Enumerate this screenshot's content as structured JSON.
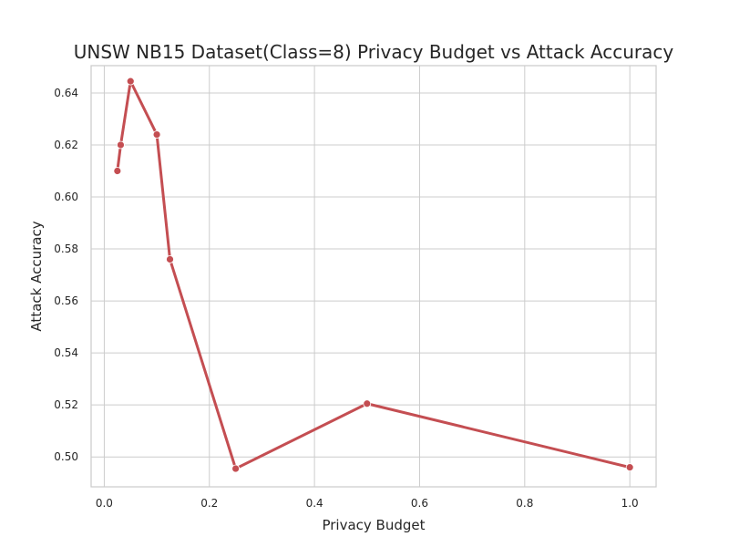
{
  "chart_data": {
    "type": "line",
    "title": "UNSW NB15 Dataset(Class=8) Privacy Budget vs Attack Accuracy",
    "xlabel": "Privacy Budget",
    "ylabel": "Attack Accuracy",
    "xlim": [
      -0.025,
      1.05
    ],
    "ylim": [
      0.4885,
      0.6505
    ],
    "xticks": [
      0.0,
      0.2,
      0.4,
      0.6,
      0.8,
      1.0
    ],
    "xtick_labels": [
      "0.0",
      "0.2",
      "0.4",
      "0.6",
      "0.8",
      "1.0"
    ],
    "yticks": [
      0.5,
      0.52,
      0.54,
      0.56,
      0.58,
      0.6,
      0.62,
      0.64
    ],
    "ytick_labels": [
      "0.50",
      "0.52",
      "0.54",
      "0.56",
      "0.58",
      "0.60",
      "0.62",
      "0.64"
    ],
    "grid": true,
    "series": [
      {
        "color": "#c44e52",
        "x": [
          0.025,
          0.03125,
          0.05,
          0.1,
          0.125,
          0.25,
          0.5,
          1.0
        ],
        "y": [
          0.61,
          0.62,
          0.6445,
          0.624,
          0.576,
          0.4955,
          0.5205,
          0.496
        ]
      }
    ]
  }
}
